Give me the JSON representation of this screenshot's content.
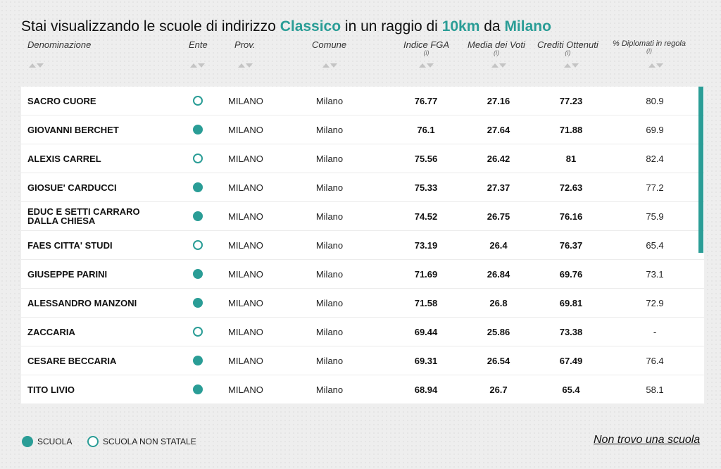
{
  "title": {
    "prefix": "Stai visualizzando le scuole di indirizzo ",
    "indirizzo": "Classico",
    "middle": " in un raggio di ",
    "raggio": "10km",
    "da": " da ",
    "citta": "Milano"
  },
  "columns": {
    "denominazione": "Denominazione",
    "ente": "Ente",
    "prov": "Prov.",
    "comune": "Comune",
    "fga": "Indice FGA",
    "media": "Media dei Voti",
    "crediti": "Crediti Ottenuti",
    "diplomati": "% Diplomati in regola",
    "info_symbol": "(i)"
  },
  "rows": [
    {
      "name": "SACRO CUORE",
      "statale": false,
      "prov": "MILANO",
      "comune": "Milano",
      "fga": "76.77",
      "media": "27.16",
      "crediti": "77.23",
      "diplomati": "80.9"
    },
    {
      "name": "GIOVANNI BERCHET",
      "statale": true,
      "prov": "MILANO",
      "comune": "Milano",
      "fga": "76.1",
      "media": "27.64",
      "crediti": "71.88",
      "diplomati": "69.9"
    },
    {
      "name": "ALEXIS CARREL",
      "statale": false,
      "prov": "MILANO",
      "comune": "Milano",
      "fga": "75.56",
      "media": "26.42",
      "crediti": "81",
      "diplomati": "82.4"
    },
    {
      "name": "GIOSUE' CARDUCCI",
      "statale": true,
      "prov": "MILANO",
      "comune": "Milano",
      "fga": "75.33",
      "media": "27.37",
      "crediti": "72.63",
      "diplomati": "77.2"
    },
    {
      "name": "EDUC E SETTI CARRARO DALLA CHIESA",
      "statale": true,
      "prov": "MILANO",
      "comune": "Milano",
      "fga": "74.52",
      "media": "26.75",
      "crediti": "76.16",
      "diplomati": "75.9"
    },
    {
      "name": "FAES CITTA' STUDI",
      "statale": false,
      "prov": "MILANO",
      "comune": "Milano",
      "fga": "73.19",
      "media": "26.4",
      "crediti": "76.37",
      "diplomati": "65.4"
    },
    {
      "name": "GIUSEPPE PARINI",
      "statale": true,
      "prov": "MILANO",
      "comune": "Milano",
      "fga": "71.69",
      "media": "26.84",
      "crediti": "69.76",
      "diplomati": "73.1"
    },
    {
      "name": "ALESSANDRO MANZONI",
      "statale": true,
      "prov": "MILANO",
      "comune": "Milano",
      "fga": "71.58",
      "media": "26.8",
      "crediti": "69.81",
      "diplomati": "72.9"
    },
    {
      "name": "ZACCARIA",
      "statale": false,
      "prov": "MILANO",
      "comune": "Milano",
      "fga": "69.44",
      "media": "25.86",
      "crediti": "73.38",
      "diplomati": "-"
    },
    {
      "name": "CESARE BECCARIA",
      "statale": true,
      "prov": "MILANO",
      "comune": "Milano",
      "fga": "69.31",
      "media": "26.54",
      "crediti": "67.49",
      "diplomati": "76.4"
    },
    {
      "name": "TITO LIVIO",
      "statale": true,
      "prov": "MILANO",
      "comune": "Milano",
      "fga": "68.94",
      "media": "26.7",
      "crediti": "65.4",
      "diplomati": "58.1"
    }
  ],
  "legend": {
    "scuola": "SCUOLA",
    "non_statale": "SCUOLA NON STATALE"
  },
  "not_found_link": "Non trovo una scuola",
  "colors": {
    "accent": "#2a9d96"
  }
}
